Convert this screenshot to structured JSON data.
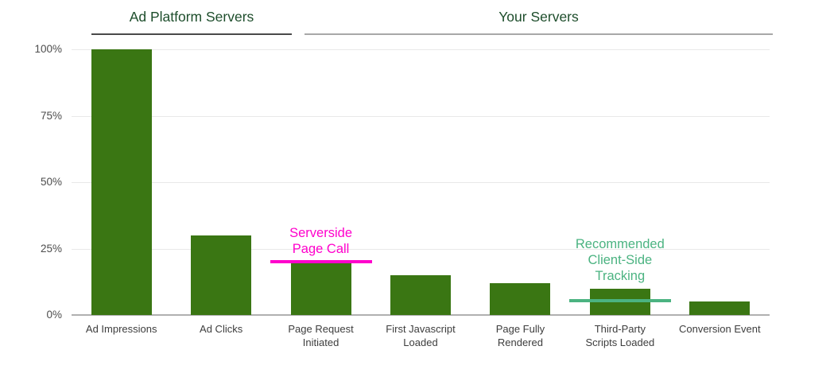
{
  "chart_data": {
    "type": "bar",
    "title": "",
    "group_headers": [
      {
        "label": "Ad Platform Servers",
        "categories_spanned": [
          "Ad Impressions",
          "Ad Clicks"
        ],
        "underline_color": "#4a4a4a"
      },
      {
        "label": "Your Servers",
        "categories_spanned": [
          "Page Request Initiated",
          "First Javascript Loaded",
          "Page Fully Rendered",
          "Third-Party Scripts Loaded",
          "Conversion Event"
        ],
        "underline_color": "#a8a8a8"
      }
    ],
    "categories": [
      "Ad Impressions",
      "Ad Clicks",
      "Page Request\nInitiated",
      "First Javascript\nLoaded",
      "Page Fully\nRendered",
      "Third-Party\nScripts Loaded",
      "Conversion Event"
    ],
    "values": [
      100,
      30,
      20,
      15,
      12,
      10,
      5
    ],
    "value_unit": "%",
    "ylim": [
      0,
      100
    ],
    "yticks": [
      0,
      25,
      50,
      75,
      100
    ],
    "ytick_labels": [
      "0%",
      "25%",
      "50%",
      "75%",
      "100%"
    ],
    "grid": true,
    "legend_position": "none",
    "bar_color": "#3a7613",
    "title_color": "#1d4d2b",
    "annotations": [
      {
        "text": "Serverside\nPage Call",
        "color": "#ff00cc",
        "category_index": 2,
        "line_value": 20
      },
      {
        "text": "Recommended\nClient-Side\nTracking",
        "color": "#4bb381",
        "category_index": 5,
        "line_value": 5.5
      }
    ]
  }
}
